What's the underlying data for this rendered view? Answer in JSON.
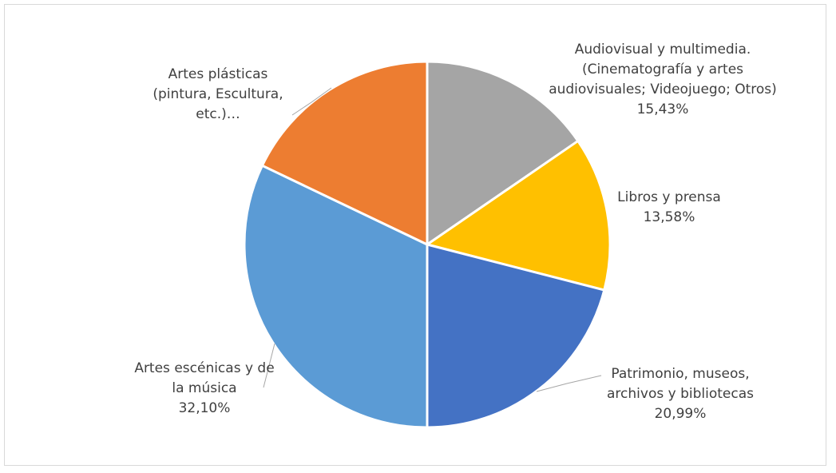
{
  "chart_data": {
    "type": "pie",
    "title": "",
    "slices": [
      {
        "lines": [
          "Audiovisual y multimedia.",
          "(Cinematografía y artes",
          "audiovisuales; Videojuego; Otros)"
        ],
        "percent_label": "15,43%",
        "value": 15.43,
        "color": "#a5a5a5"
      },
      {
        "lines": [
          "Libros y prensa"
        ],
        "percent_label": "13,58%",
        "value": 13.58,
        "color": "#ffc000"
      },
      {
        "lines": [
          "Patrimonio, museos,",
          "archivos y bibliotecas"
        ],
        "percent_label": "20,99%",
        "value": 20.99,
        "color": "#4472c4"
      },
      {
        "lines": [
          "Artes escénicas y de",
          "la música"
        ],
        "percent_label": "32,10%",
        "value": 32.1,
        "color": "#5b9bd5"
      },
      {
        "lines": [
          "Artes plásticas",
          "(pintura, Escultura,",
          "etc.)…"
        ],
        "percent_label": "",
        "value": 17.9,
        "color": "#ed7d31"
      }
    ]
  }
}
